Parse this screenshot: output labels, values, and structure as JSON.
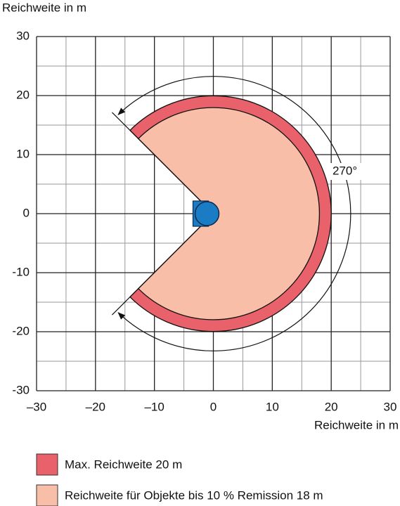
{
  "chart_data": {
    "type": "sector",
    "y_label": "Reichweite in m",
    "x_label": "Reichweite in m",
    "xlim": [
      -30,
      30
    ],
    "ylim": [
      -30,
      30
    ],
    "xticks": [
      {
        "value": -30,
        "label": "–30"
      },
      {
        "value": -20,
        "label": "–20"
      },
      {
        "value": -10,
        "label": "–10"
      },
      0,
      10,
      20,
      30
    ],
    "yticks": [
      {
        "value": -30,
        "label": "-30"
      },
      {
        "value": -20,
        "label": "-20"
      },
      {
        "value": -10,
        "label": "-10"
      },
      0,
      10,
      20,
      30
    ],
    "xminorticks": [
      -25,
      -15,
      -5,
      5,
      15,
      25
    ],
    "yminorticks": [
      -25,
      -15,
      -5,
      5,
      15,
      25
    ],
    "grid": true,
    "angle": 270,
    "angle_label": "270°",
    "series": [
      {
        "name": "Max. Reichweite 20 m",
        "color": "#e8616b",
        "radius": 20
      },
      {
        "name": "Reichweite für Objekte bis 10 % Remission 18 m",
        "color": "#f9bea8",
        "radius": 18
      }
    ]
  }
}
